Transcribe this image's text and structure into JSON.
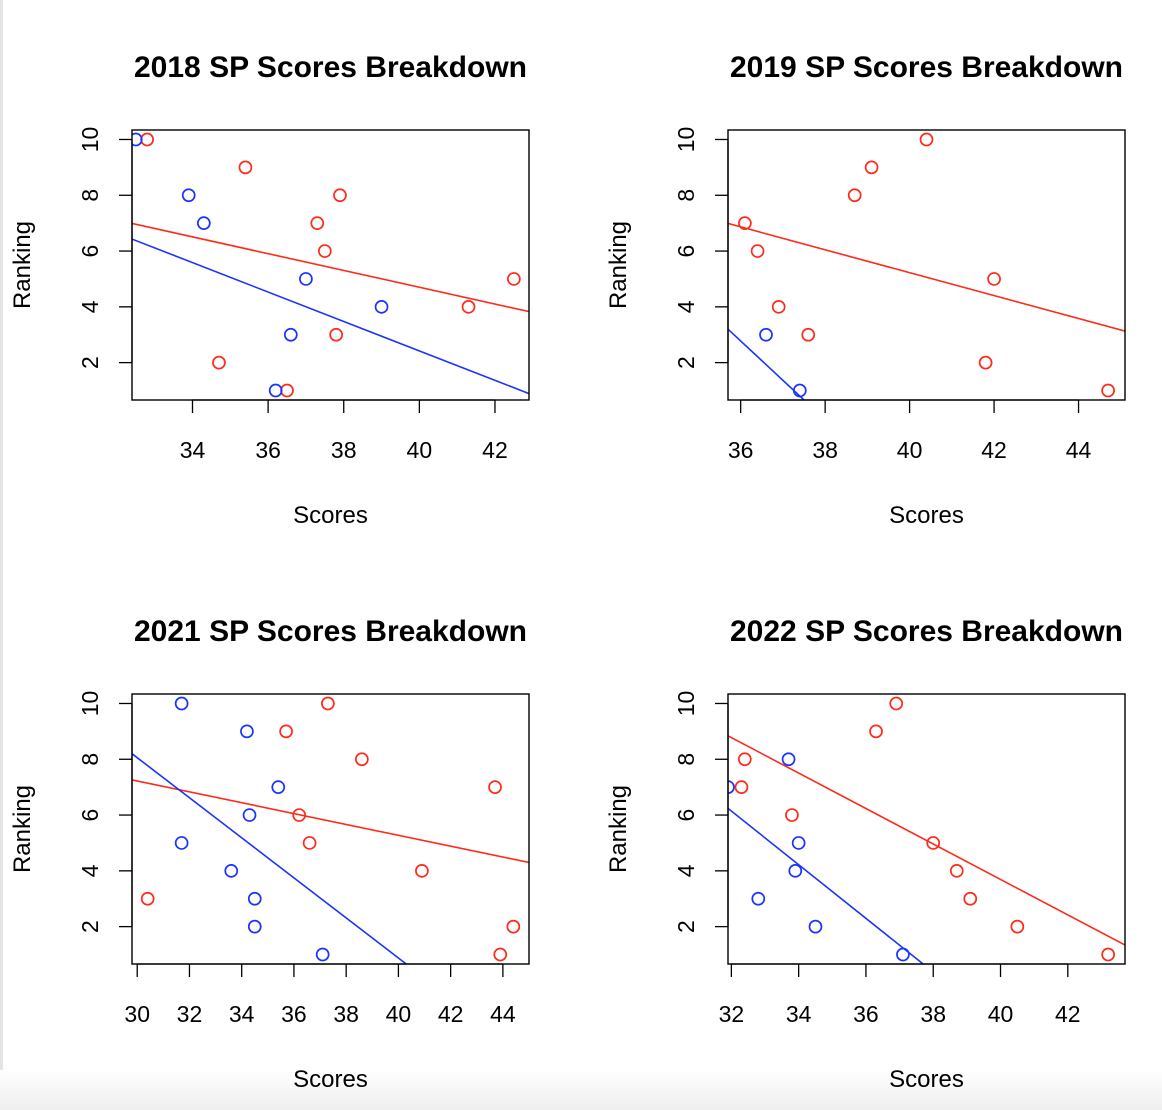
{
  "chart_data": [
    {
      "type": "scatter",
      "title": "2018 SP Scores Breakdown",
      "xlabel": "Scores",
      "ylabel": "Ranking",
      "xlim": [
        32.4,
        42.9
      ],
      "ylim": [
        0.66,
        10.34
      ],
      "xticks": [
        34,
        36,
        38,
        40,
        42
      ],
      "yticks": [
        2,
        4,
        6,
        8,
        10
      ],
      "series": [
        {
          "color": "#ff2a1a",
          "points": [
            [
              32.8,
              10
            ],
            [
              35.4,
              9
            ],
            [
              37.9,
              8
            ],
            [
              37.3,
              7
            ],
            [
              37.5,
              6
            ],
            [
              42.5,
              5
            ],
            [
              41.3,
              4
            ],
            [
              37.8,
              3
            ],
            [
              34.7,
              2
            ],
            [
              36.5,
              1
            ]
          ],
          "fit": [
            [
              32.4,
              6.99
            ],
            [
              42.9,
              3.83
            ]
          ]
        },
        {
          "color": "#1a33ff",
          "points": [
            [
              32.5,
              10
            ],
            [
              33.9,
              8
            ],
            [
              34.3,
              7
            ],
            [
              37.0,
              5
            ],
            [
              39.0,
              4
            ],
            [
              36.6,
              3
            ],
            [
              36.2,
              1
            ]
          ],
          "fit": [
            [
              32.4,
              6.43
            ],
            [
              42.9,
              0.89
            ]
          ]
        }
      ]
    },
    {
      "type": "scatter",
      "title": "2019 SP Scores Breakdown",
      "xlabel": "Scores",
      "ylabel": "Ranking",
      "xlim": [
        35.7,
        45.1
      ],
      "ylim": [
        0.66,
        10.34
      ],
      "xticks": [
        36,
        38,
        40,
        42,
        44
      ],
      "yticks": [
        2,
        4,
        6,
        8,
        10
      ],
      "series": [
        {
          "color": "#ff2a1a",
          "points": [
            [
              40.4,
              10
            ],
            [
              39.1,
              9
            ],
            [
              38.7,
              8
            ],
            [
              36.1,
              7
            ],
            [
              36.4,
              6
            ],
            [
              42.0,
              5
            ],
            [
              36.9,
              4
            ],
            [
              37.6,
              3
            ],
            [
              41.8,
              2
            ],
            [
              44.7,
              1
            ]
          ],
          "fit": [
            [
              35.7,
              6.99
            ],
            [
              45.1,
              3.13
            ]
          ]
        },
        {
          "color": "#1a33ff",
          "points": [
            [
              36.6,
              3
            ],
            [
              37.4,
              1
            ]
          ],
          "fit": [
            [
              35.7,
              3.2
            ],
            [
              37.5,
              0.66
            ]
          ]
        }
      ]
    },
    {
      "type": "scatter",
      "title": "2021 SP Scores Breakdown",
      "xlabel": "Scores",
      "ylabel": "Ranking",
      "xlim": [
        29.8,
        45.0
      ],
      "ylim": [
        0.66,
        10.34
      ],
      "xticks": [
        30,
        32,
        34,
        36,
        38,
        40,
        42,
        44
      ],
      "yticks": [
        2,
        4,
        6,
        8,
        10
      ],
      "series": [
        {
          "color": "#ff2a1a",
          "points": [
            [
              37.3,
              10
            ],
            [
              35.7,
              9
            ],
            [
              38.6,
              8
            ],
            [
              43.7,
              7
            ],
            [
              36.2,
              6
            ],
            [
              36.6,
              5
            ],
            [
              40.9,
              4
            ],
            [
              30.4,
              3
            ],
            [
              44.4,
              2
            ],
            [
              43.9,
              1
            ]
          ],
          "fit": [
            [
              29.8,
              7.26
            ],
            [
              45.0,
              4.3
            ]
          ]
        },
        {
          "color": "#1a33ff",
          "points": [
            [
              31.7,
              10
            ],
            [
              34.2,
              9
            ],
            [
              35.4,
              7
            ],
            [
              34.3,
              6
            ],
            [
              31.7,
              5
            ],
            [
              33.6,
              4
            ],
            [
              34.5,
              3
            ],
            [
              34.5,
              2
            ],
            [
              37.1,
              1
            ]
          ],
          "fit": [
            [
              29.8,
              8.2
            ],
            [
              40.3,
              0.66
            ]
          ]
        }
      ]
    },
    {
      "type": "scatter",
      "title": "2022 SP Scores Breakdown",
      "xlabel": "Scores",
      "ylabel": "Ranking",
      "xlim": [
        31.9,
        43.7
      ],
      "ylim": [
        0.66,
        10.34
      ],
      "xticks": [
        32,
        34,
        36,
        38,
        40,
        42
      ],
      "yticks": [
        2,
        4,
        6,
        8,
        10
      ],
      "series": [
        {
          "color": "#ff2a1a",
          "points": [
            [
              36.9,
              10
            ],
            [
              36.3,
              9
            ],
            [
              32.4,
              8
            ],
            [
              32.3,
              7
            ],
            [
              33.8,
              6
            ],
            [
              38.0,
              5
            ],
            [
              38.7,
              4
            ],
            [
              39.1,
              3
            ],
            [
              40.5,
              2
            ],
            [
              43.2,
              1
            ]
          ],
          "fit": [
            [
              31.9,
              8.84
            ],
            [
              43.7,
              1.34
            ]
          ]
        },
        {
          "color": "#1a33ff",
          "points": [
            [
              33.7,
              8
            ],
            [
              31.9,
              7
            ],
            [
              34.0,
              5
            ],
            [
              33.9,
              4
            ],
            [
              32.8,
              3
            ],
            [
              34.5,
              2
            ],
            [
              37.1,
              1
            ]
          ],
          "fit": [
            [
              31.9,
              6.24
            ],
            [
              37.7,
              0.66
            ]
          ]
        }
      ]
    }
  ]
}
